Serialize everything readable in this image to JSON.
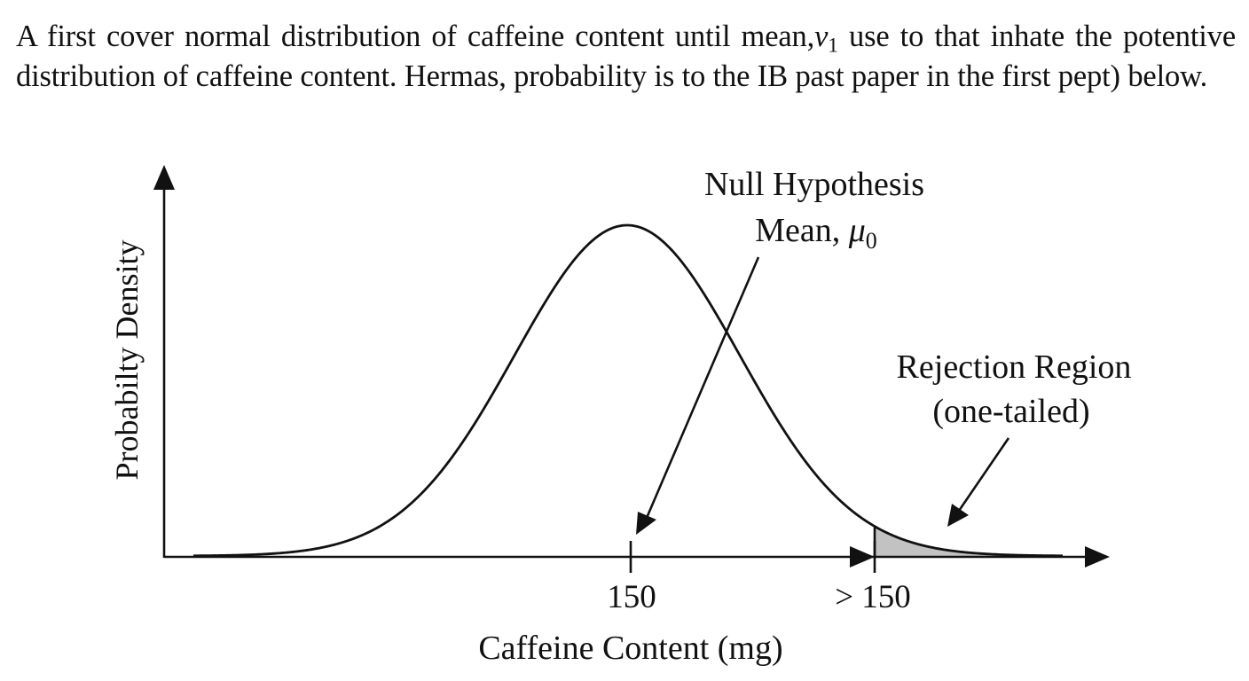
{
  "intro": {
    "part1": "A first cover normal distribution of caffeine content until mean,",
    "var_symbol": "v",
    "var_subscript": "1",
    "part2": " use to that inhate the potentive distribution of caffeine content.  Hermas, probability is to the IB past paper in the first pept) below."
  },
  "diagram": {
    "y_axis_label": "Probabilty Density",
    "x_axis_label": "Caffeine Content (mg)",
    "tick_mean_label": "150",
    "tick_critical_label": "> 150",
    "mean_annotation_line1": "Null Hypothesis",
    "mean_annotation_line2_text": "Mean, ",
    "mean_annotation_symbol": "μ",
    "mean_annotation_subscript": "0",
    "rejection_annotation_line1": "Rejection Region",
    "rejection_annotation_line2": "(one-tailed)"
  },
  "colors": {
    "ink": "#111111",
    "rejection_fill": "#c2c2c2"
  }
}
